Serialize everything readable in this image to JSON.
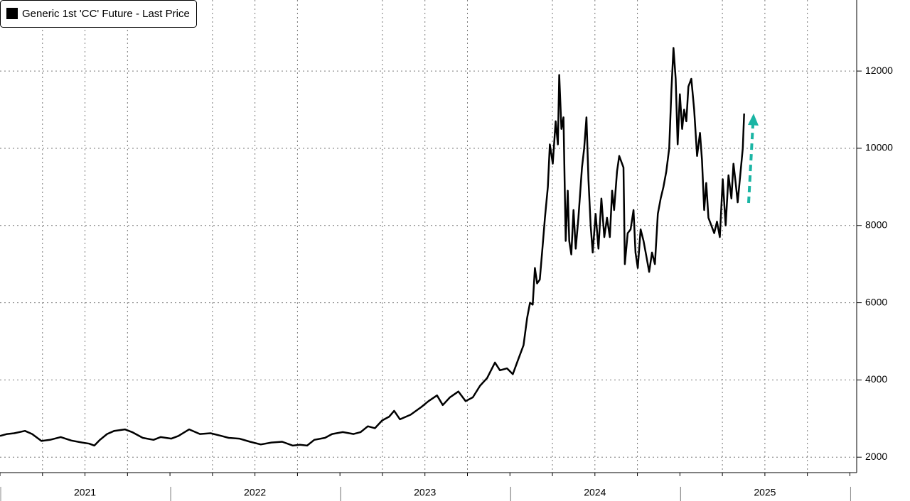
{
  "chart_data": {
    "type": "line",
    "x": [
      2021.0,
      2021.042,
      2021.084,
      2021.147,
      2021.189,
      2021.244,
      2021.294,
      2021.357,
      2021.42,
      2021.483,
      2021.525,
      2021.555,
      2021.588,
      2021.63,
      2021.672,
      2021.735,
      2021.777,
      2021.84,
      2021.903,
      2021.945,
      2022.008,
      2022.05,
      2022.113,
      2022.176,
      2022.239,
      2022.303,
      2022.345,
      2022.408,
      2022.471,
      2022.534,
      2022.597,
      2022.66,
      2022.723,
      2022.765,
      2022.807,
      2022.849,
      2022.912,
      2022.954,
      2023.017,
      2023.08,
      2023.122,
      2023.164,
      2023.206,
      2023.248,
      2023.29,
      2023.319,
      2023.353,
      2023.416,
      2023.479,
      2023.521,
      2023.571,
      2023.605,
      2023.647,
      2023.697,
      2023.739,
      2023.782,
      2023.824,
      2023.866,
      2023.912,
      2023.941,
      2023.983,
      2024.017,
      2024.046,
      2024.08,
      2024.101,
      2024.118,
      2024.134,
      2024.147,
      2024.16,
      2024.176,
      2024.193,
      2024.206,
      2024.223,
      2024.235,
      2024.252,
      2024.269,
      2024.282,
      2024.29,
      2024.303,
      2024.315,
      2024.328,
      2024.34,
      2024.349,
      2024.361,
      2024.374,
      2024.387,
      2024.403,
      2024.424,
      2024.437,
      2024.45,
      2024.462,
      2024.475,
      2024.487,
      2024.504,
      2024.521,
      2024.538,
      2024.555,
      2024.571,
      2024.588,
      2024.601,
      2024.613,
      2024.63,
      2024.643,
      2024.668,
      2024.676,
      2024.693,
      2024.71,
      2024.727,
      2024.739,
      2024.752,
      2024.769,
      2024.786,
      2024.803,
      2024.819,
      2024.836,
      2024.853,
      2024.87,
      2024.887,
      2024.903,
      2024.92,
      2024.937,
      2024.95,
      2024.962,
      2024.975,
      2024.987,
      2025.0,
      2025.013,
      2025.025,
      2025.038,
      2025.05,
      2025.067,
      2025.084,
      2025.101,
      2025.118,
      2025.13,
      2025.143,
      2025.155,
      2025.168,
      2025.185,
      2025.202,
      2025.218,
      2025.235,
      2025.252,
      2025.269,
      2025.286,
      2025.303,
      2025.315,
      2025.328,
      2025.34,
      2025.353,
      2025.37,
      2025.378
    ],
    "series": [
      {
        "name": "Generic 1st 'CC' Future - Last Price",
        "color": "#000000",
        "values": [
          2550,
          2600,
          2620,
          2680,
          2600,
          2420,
          2450,
          2520,
          2430,
          2380,
          2350,
          2300,
          2450,
          2600,
          2680,
          2720,
          2650,
          2500,
          2450,
          2520,
          2480,
          2550,
          2720,
          2600,
          2620,
          2550,
          2500,
          2480,
          2400,
          2330,
          2380,
          2400,
          2300,
          2320,
          2300,
          2450,
          2500,
          2600,
          2650,
          2600,
          2650,
          2800,
          2750,
          2950,
          3050,
          3200,
          2980,
          3100,
          3300,
          3450,
          3600,
          3350,
          3550,
          3700,
          3450,
          3550,
          3850,
          4050,
          4450,
          4250,
          4300,
          4150,
          4500,
          4900,
          5600,
          6000,
          5950,
          6900,
          6500,
          6600,
          7500,
          8200,
          9000,
          10100,
          9600,
          10700,
          10100,
          11900,
          10500,
          10800,
          7600,
          8900,
          7600,
          7250,
          8400,
          7400,
          8200,
          9500,
          10000,
          10800,
          9200,
          8000,
          7300,
          8300,
          7400,
          8700,
          7700,
          8200,
          7700,
          8900,
          8400,
          9400,
          9800,
          9500,
          7000,
          7800,
          7900,
          8400,
          7300,
          6900,
          7900,
          7600,
          7200,
          6800,
          7300,
          7000,
          8300,
          8700,
          9000,
          9400,
          10000,
          11500,
          12600,
          11800,
          10100,
          11400,
          10500,
          11000,
          10700,
          11600,
          11800,
          11000,
          9800,
          10400,
          9700,
          8400,
          9100,
          8200,
          8000,
          7800,
          8100,
          7700,
          9200,
          8000,
          9300,
          8700,
          9600,
          9100,
          8600,
          9200,
          10000,
          10900
        ]
      }
    ],
    "xlim": [
      2021,
      2026.04
    ],
    "xticks": [
      {
        "value": 2021.5,
        "label": "2021"
      },
      {
        "value": 2022.5,
        "label": "2022"
      },
      {
        "value": 2023.5,
        "label": "2023"
      },
      {
        "value": 2024.5,
        "label": "2024"
      },
      {
        "value": 2025.5,
        "label": "2025"
      }
    ],
    "ylim": [
      1600,
      13840
    ],
    "yticks": [
      2000,
      4000,
      6000,
      8000,
      10000,
      12000
    ],
    "grid": true
  }
}
